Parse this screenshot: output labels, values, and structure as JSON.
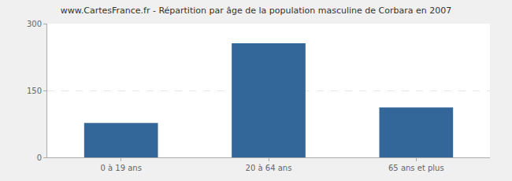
{
  "chart_data": {
    "type": "bar",
    "title": "www.CartesFrance.fr - Répartition par âge de la population masculine de Corbara en 2007",
    "categories": [
      "0 à 19 ans",
      "20 à 64 ans",
      "65 ans et plus"
    ],
    "values": [
      77,
      256,
      112
    ],
    "color": "#336699",
    "ylim": [
      0,
      300
    ],
    "yticks": [
      0,
      150,
      300
    ],
    "grid": true
  }
}
